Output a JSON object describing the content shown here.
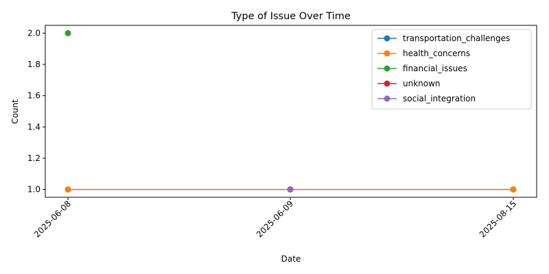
{
  "chart_data": {
    "type": "line",
    "title": "Type of Issue Over Time",
    "xlabel": "Date",
    "ylabel": "Count",
    "categories": [
      "2025-06-08",
      "2025-06-09",
      "2025-08-15"
    ],
    "ylim": [
      0.95,
      2.05
    ],
    "yticks": [
      1.0,
      1.2,
      1.4,
      1.6,
      1.8,
      2.0
    ],
    "ytick_labels": [
      "1.0",
      "1.2",
      "1.4",
      "1.6",
      "1.8",
      "2.0"
    ],
    "grid": false,
    "legend_position": "top-right",
    "series": [
      {
        "name": "transportation_challenges",
        "color": "#1f77b4",
        "values": [
          1,
          1,
          1
        ]
      },
      {
        "name": "health_concerns",
        "color": "#ff7f0e",
        "values": [
          1,
          1,
          1
        ]
      },
      {
        "name": "financial_issues",
        "color": "#2ca02c",
        "values": [
          2,
          null,
          null
        ]
      },
      {
        "name": "unknown",
        "color": "#d62728",
        "values": [
          null,
          1,
          null
        ]
      },
      {
        "name": "social_integration",
        "color": "#9467bd",
        "values": [
          null,
          1,
          null
        ]
      }
    ]
  }
}
